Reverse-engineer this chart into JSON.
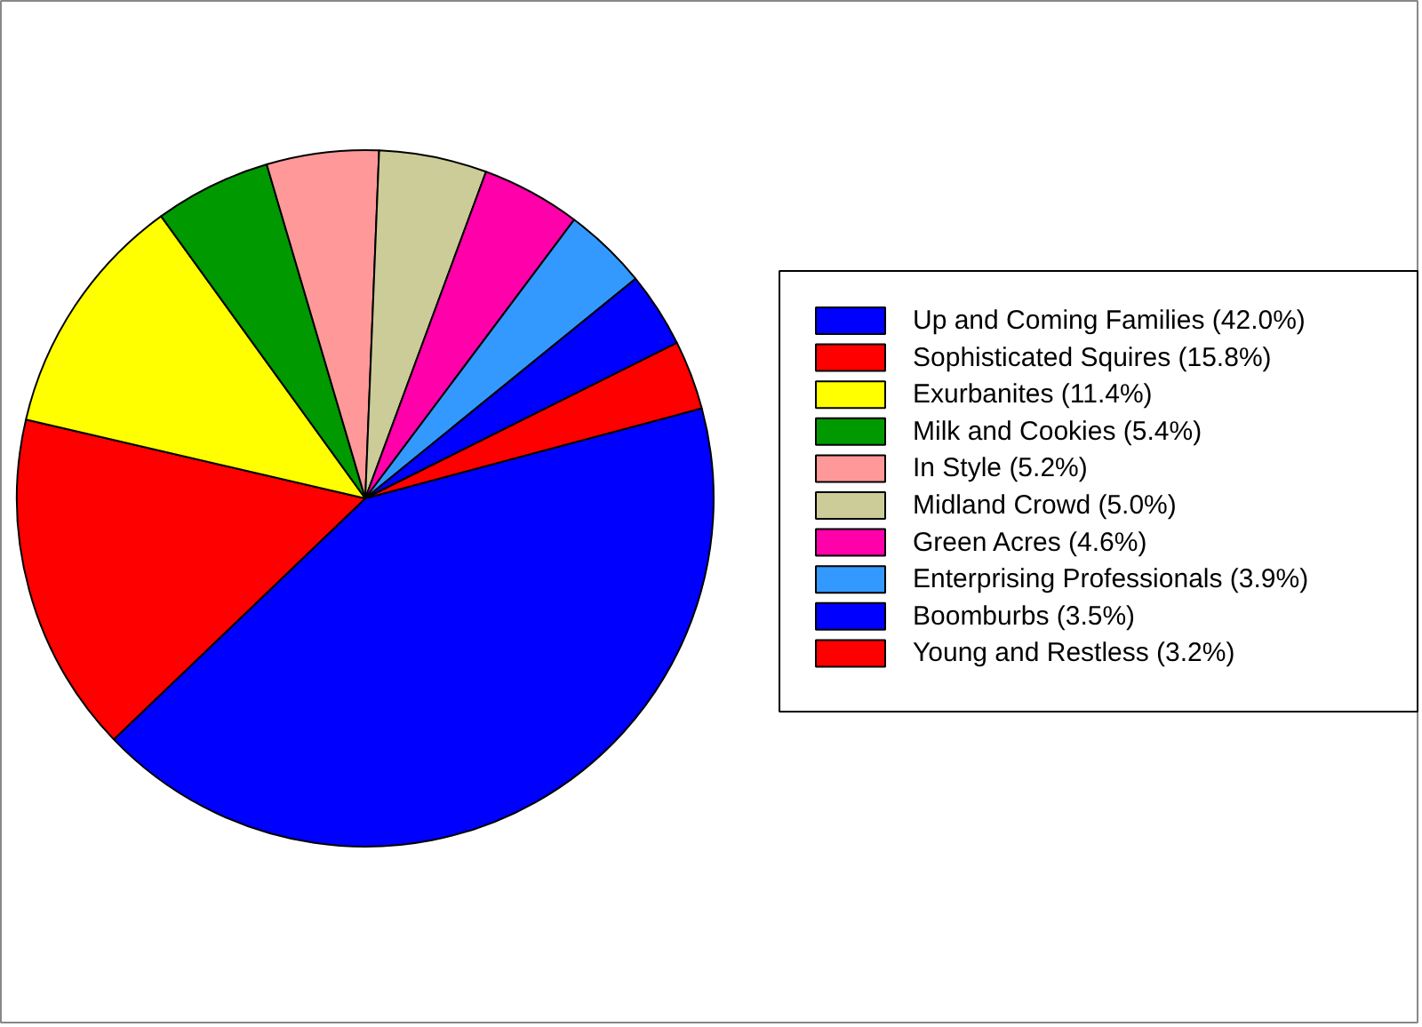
{
  "chart_data": {
    "type": "pie",
    "categories": [
      "Up and Coming Families (42.0%)",
      "Sophisticated Squires (15.8%)",
      "Exurbanites (11.4%)",
      "Milk and Cookies (5.4%)",
      "In Style (5.2%)",
      "Midland Crowd (5.0%)",
      "Green Acres (4.6%)",
      "Enterprising Professionals (3.9%)",
      "Boomburbs (3.5%)",
      "Young and Restless (3.2%)"
    ],
    "values": [
      42.0,
      15.8,
      11.4,
      5.4,
      5.2,
      5.0,
      4.6,
      3.9,
      3.5,
      3.2
    ],
    "colors": [
      "#0000ff",
      "#ff0000",
      "#ffff00",
      "#009900",
      "#ff9999",
      "#cccc99",
      "#ff00aa",
      "#3399ff",
      "#0000ff",
      "#ff0000"
    ],
    "legend": "right"
  }
}
